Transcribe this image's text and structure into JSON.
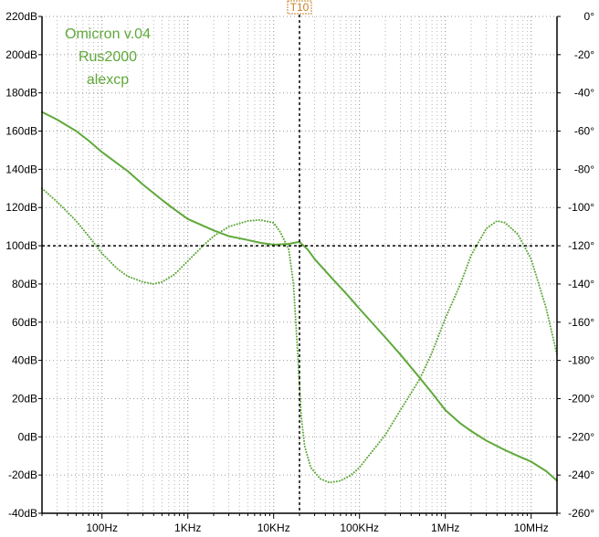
{
  "chart_data": {
    "type": "line",
    "title": "",
    "x_scale": "log",
    "xlim": [
      20,
      20000000
    ],
    "x_ticks": [
      {
        "value": 100,
        "label": "100Hz"
      },
      {
        "value": 1000,
        "label": "1KHz"
      },
      {
        "value": 10000,
        "label": "10KHz"
      },
      {
        "value": 100000,
        "label": "100KHz"
      },
      {
        "value": 1000000,
        "label": "1MHz"
      },
      {
        "value": 10000000,
        "label": "10MHz"
      }
    ],
    "y_left": {
      "lim": [
        -40,
        220
      ],
      "ticks": [
        {
          "value": 220,
          "label": "220dB"
        },
        {
          "value": 200,
          "label": "200dB"
        },
        {
          "value": 180,
          "label": "180dB"
        },
        {
          "value": 160,
          "label": "160dB"
        },
        {
          "value": 140,
          "label": "140dB"
        },
        {
          "value": 120,
          "label": "120dB"
        },
        {
          "value": 100,
          "label": "100dB"
        },
        {
          "value": 80,
          "label": "80dB"
        },
        {
          "value": 60,
          "label": "60dB"
        },
        {
          "value": 40,
          "label": "40dB"
        },
        {
          "value": 20,
          "label": "20dB"
        },
        {
          "value": 0,
          "label": "0dB"
        },
        {
          "value": -20,
          "label": "-20dB"
        },
        {
          "value": -40,
          "label": "-40dB"
        }
      ]
    },
    "y_right": {
      "lim": [
        -260,
        0
      ],
      "ticks": [
        {
          "value": 0,
          "label": "0°"
        },
        {
          "value": -20,
          "label": "-20°"
        },
        {
          "value": -40,
          "label": "-40°"
        },
        {
          "value": -60,
          "label": "-60°"
        },
        {
          "value": -80,
          "label": "-80°"
        },
        {
          "value": -100,
          "label": "-100°"
        },
        {
          "value": -120,
          "label": "-120°"
        },
        {
          "value": -140,
          "label": "-140°"
        },
        {
          "value": -160,
          "label": "-160°"
        },
        {
          "value": -180,
          "label": "-180°"
        },
        {
          "value": -200,
          "label": "-200°"
        },
        {
          "value": -220,
          "label": "-220°"
        },
        {
          "value": -240,
          "label": "-240°"
        },
        {
          "value": -260,
          "label": "-260°"
        }
      ]
    },
    "grid": true,
    "annotations": [
      "Omicron v.04",
      "Rus2000",
      "alexcp"
    ],
    "cursor": {
      "label": "T10",
      "x": 20000,
      "y": 100
    },
    "series": [
      {
        "axis": "left",
        "style": "solid",
        "color": "#5fa83a",
        "points": [
          [
            20,
            170
          ],
          [
            30,
            166
          ],
          [
            50,
            160
          ],
          [
            70,
            155
          ],
          [
            100,
            149
          ],
          [
            200,
            139
          ],
          [
            300,
            132
          ],
          [
            500,
            124
          ],
          [
            700,
            119
          ],
          [
            1000,
            114
          ],
          [
            2000,
            108
          ],
          [
            3000,
            105
          ],
          [
            5000,
            103
          ],
          [
            7000,
            101.5
          ],
          [
            10000,
            100.5
          ],
          [
            15000,
            101
          ],
          [
            20000,
            102
          ],
          [
            25000,
            98
          ],
          [
            30000,
            93
          ],
          [
            50000,
            82
          ],
          [
            70000,
            75
          ],
          [
            100000,
            67
          ],
          [
            200000,
            52
          ],
          [
            300000,
            43
          ],
          [
            500000,
            31
          ],
          [
            700000,
            23
          ],
          [
            1000000,
            14
          ],
          [
            1500000,
            7
          ],
          [
            2000000,
            3
          ],
          [
            3000000,
            -2
          ],
          [
            5000000,
            -7
          ],
          [
            7000000,
            -10
          ],
          [
            10000000,
            -13
          ],
          [
            15000000,
            -18
          ],
          [
            20000000,
            -23
          ]
        ]
      },
      {
        "axis": "right",
        "style": "dotted",
        "color": "#5fa83a",
        "points": [
          [
            20,
            -90
          ],
          [
            30,
            -97
          ],
          [
            50,
            -107
          ],
          [
            70,
            -115
          ],
          [
            100,
            -124
          ],
          [
            150,
            -132
          ],
          [
            200,
            -136
          ],
          [
            300,
            -139
          ],
          [
            400,
            -140
          ],
          [
            500,
            -139
          ],
          [
            700,
            -135
          ],
          [
            1000,
            -128
          ],
          [
            1500,
            -120
          ],
          [
            2000,
            -115
          ],
          [
            3000,
            -110
          ],
          [
            5000,
            -107
          ],
          [
            7000,
            -106.5
          ],
          [
            10000,
            -108
          ],
          [
            12000,
            -113
          ],
          [
            15000,
            -122
          ],
          [
            17000,
            -140
          ],
          [
            19000,
            -175
          ],
          [
            21000,
            -210
          ],
          [
            23000,
            -225
          ],
          [
            27000,
            -236
          ],
          [
            35000,
            -242
          ],
          [
            45000,
            -244
          ],
          [
            60000,
            -243
          ],
          [
            80000,
            -240
          ],
          [
            100000,
            -236
          ],
          [
            150000,
            -226
          ],
          [
            200000,
            -219
          ],
          [
            300000,
            -206
          ],
          [
            500000,
            -190
          ],
          [
            700000,
            -176
          ],
          [
            1000000,
            -158
          ],
          [
            1500000,
            -140
          ],
          [
            2000000,
            -125
          ],
          [
            3000000,
            -111
          ],
          [
            4000000,
            -107
          ],
          [
            5000000,
            -108
          ],
          [
            7000000,
            -114
          ],
          [
            10000000,
            -127
          ],
          [
            15000000,
            -153
          ],
          [
            20000000,
            -177
          ]
        ]
      }
    ]
  }
}
